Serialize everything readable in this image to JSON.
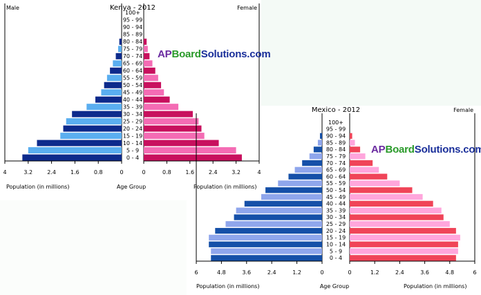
{
  "age_groups": [
    "0 - 4",
    "5 - 9",
    "10 - 14",
    "15 - 19",
    "20 - 24",
    "25 - 29",
    "30 - 34",
    "35 - 39",
    "40 - 44",
    "45 - 49",
    "50 - 54",
    "55 - 59",
    "60 - 64",
    "65 - 69",
    "70 - 74",
    "75 - 79",
    "80 - 84",
    "85 - 89",
    "90 - 94",
    "95 - 99",
    "100+"
  ],
  "watermark": {
    "part1": "AP",
    "part2": "Board",
    "part3": "Solutions.com"
  },
  "chart_data": [
    {
      "type": "bar",
      "orientation": "population-pyramid",
      "title": "Kenya - 2012",
      "male_label": "Male",
      "female_label": "Female",
      "xlabel_left": "Population (in millions)",
      "xlabel_right": "Population (in millions)",
      "center_label": "Age Group",
      "xlim": [
        0,
        4
      ],
      "ticks": [
        "4",
        "3.2",
        "2.4",
        "1.6",
        "0.8",
        "0",
        "0",
        "0.8",
        "1.6",
        "2.4",
        "3.2",
        "4"
      ],
      "tick_values": [
        4,
        3.2,
        2.4,
        1.6,
        0.8,
        0,
        0,
        0.8,
        1.6,
        2.4,
        3.2,
        4
      ],
      "categories": [
        "0 - 4",
        "5 - 9",
        "10 - 14",
        "15 - 19",
        "20 - 24",
        "25 - 29",
        "30 - 34",
        "35 - 39",
        "40 - 44",
        "45 - 49",
        "50 - 54",
        "55 - 59",
        "60 - 64",
        "65 - 69",
        "70 - 74",
        "75 - 79",
        "80 - 84",
        "85 - 89",
        "90 - 94",
        "95 - 99",
        "100+"
      ],
      "series": [
        {
          "name": "Male",
          "values": [
            3.4,
            3.2,
            2.9,
            2.1,
            2.0,
            1.9,
            1.7,
            1.2,
            0.9,
            0.7,
            0.6,
            0.5,
            0.4,
            0.3,
            0.2,
            0.12,
            0.08,
            0.0,
            0.0,
            0.0,
            0.0
          ]
        },
        {
          "name": "Female",
          "values": [
            3.4,
            3.2,
            2.6,
            2.1,
            2.0,
            1.9,
            1.7,
            1.2,
            0.9,
            0.7,
            0.6,
            0.5,
            0.4,
            0.3,
            0.2,
            0.14,
            0.1,
            0.0,
            0.0,
            0.0,
            0.0
          ]
        }
      ],
      "colors": {
        "male_dark": "#0d2a8c",
        "male_light": "#5aaef0",
        "female_dark": "#c8105e",
        "female_light": "#f46cb4"
      }
    },
    {
      "type": "bar",
      "orientation": "population-pyramid",
      "title": "Mexico - 2012",
      "male_label": "",
      "female_label": "Female",
      "xlabel_left": "Population (in millions)",
      "xlabel_right": "Population (in millions)",
      "center_label": "Age Group",
      "xlim": [
        0,
        6
      ],
      "ticks": [
        "6",
        "4.8",
        "3.6",
        "2.4",
        "1.2",
        "0",
        "0",
        "1.2",
        "2.4",
        "3.6",
        "4.8",
        "6"
      ],
      "tick_values": [
        6,
        4.8,
        3.6,
        2.4,
        1.2,
        0,
        0,
        1.2,
        2.4,
        3.6,
        4.8,
        6
      ],
      "categories": [
        "0 - 4",
        "5 - 9",
        "10 - 14",
        "15 - 19",
        "20 - 24",
        "25 - 29",
        "30 - 34",
        "35 - 39",
        "40 - 44",
        "45 - 49",
        "50 - 54",
        "55 - 59",
        "60 - 64",
        "65 - 69",
        "70 - 74",
        "75 - 79",
        "80 - 84",
        "85 - 89",
        "90 - 94",
        "95 - 99",
        "100+"
      ],
      "series": [
        {
          "name": "Male",
          "values": [
            5.3,
            5.3,
            5.4,
            5.4,
            5.1,
            4.6,
            4.2,
            4.1,
            3.7,
            2.9,
            2.7,
            2.1,
            1.6,
            1.3,
            0.95,
            0.6,
            0.4,
            0.2,
            0.1,
            0.0,
            0.0
          ]
        },
        {
          "name": "Female",
          "values": [
            5.1,
            5.2,
            5.2,
            5.3,
            5.1,
            4.8,
            4.5,
            4.4,
            4.0,
            3.5,
            3.0,
            2.4,
            1.8,
            1.4,
            1.1,
            0.75,
            0.5,
            0.25,
            0.12,
            0.0,
            0.0
          ]
        }
      ],
      "colors": {
        "male_dark": "#1550a8",
        "male_light": "#8fa6ec",
        "female_dark": "#f04458",
        "female_light": "#ffa6dc"
      }
    }
  ]
}
